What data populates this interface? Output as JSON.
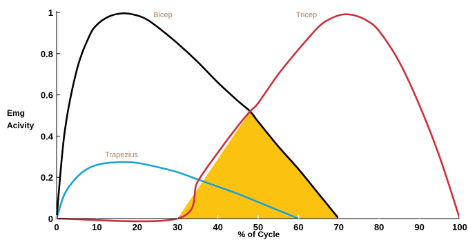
{
  "chart_data": {
    "type": "line",
    "title": "",
    "xlabel": "% of Cycle",
    "ylabel_lines": [
      "Emg",
      "Acivity"
    ],
    "xlim": [
      0,
      100
    ],
    "ylim": [
      0,
      1
    ],
    "x_ticks": [
      0,
      10,
      20,
      30,
      40,
      50,
      60,
      70,
      80,
      90,
      100
    ],
    "y_ticks": [
      0,
      0.2,
      0.4,
      0.6,
      0.8,
      1
    ],
    "y_tick_labels": [
      "0",
      "0.2",
      "0.4",
      "0.6",
      "0.8",
      "1"
    ],
    "grid": false,
    "legend": "inline labels",
    "series": [
      {
        "name": "Bicep",
        "color": "#000000",
        "x": [
          0,
          2,
          5,
          8,
          10,
          13,
          16,
          19,
          22,
          25,
          30,
          35,
          40,
          45,
          48,
          50,
          55,
          60,
          65,
          70
        ],
        "y": [
          0,
          0.42,
          0.72,
          0.88,
          0.94,
          0.98,
          0.995,
          0.99,
          0.97,
          0.93,
          0.85,
          0.76,
          0.66,
          0.57,
          0.52,
          0.47,
          0.35,
          0.24,
          0.12,
          0
        ]
      },
      {
        "name": "Tricep",
        "color": "#cc2f3a",
        "x": [
          0,
          30,
          35,
          40,
          45,
          48,
          50,
          55,
          60,
          65,
          68,
          71,
          74,
          77,
          80,
          85,
          90,
          95,
          100
        ],
        "y": [
          0,
          0,
          0.18,
          0.32,
          0.45,
          0.52,
          0.56,
          0.7,
          0.82,
          0.93,
          0.97,
          0.99,
          0.985,
          0.96,
          0.91,
          0.76,
          0.55,
          0.3,
          0
        ]
      },
      {
        "name": "Trapezius",
        "color": "#1aa3d6",
        "x": [
          0,
          2,
          5,
          8,
          11,
          14,
          17,
          20,
          25,
          30,
          35,
          40,
          45,
          50,
          55,
          60
        ],
        "y": [
          0,
          0.12,
          0.2,
          0.245,
          0.265,
          0.272,
          0.274,
          0.27,
          0.25,
          0.225,
          0.19,
          0.155,
          0.12,
          0.08,
          0.04,
          0
        ]
      }
    ],
    "shaded_region": {
      "color": "#fcc210",
      "x": [
        30,
        48,
        70
      ],
      "y": [
        0,
        0.52,
        0
      ]
    },
    "colors": {
      "label": "#b0805a",
      "axis": "#000000"
    }
  }
}
